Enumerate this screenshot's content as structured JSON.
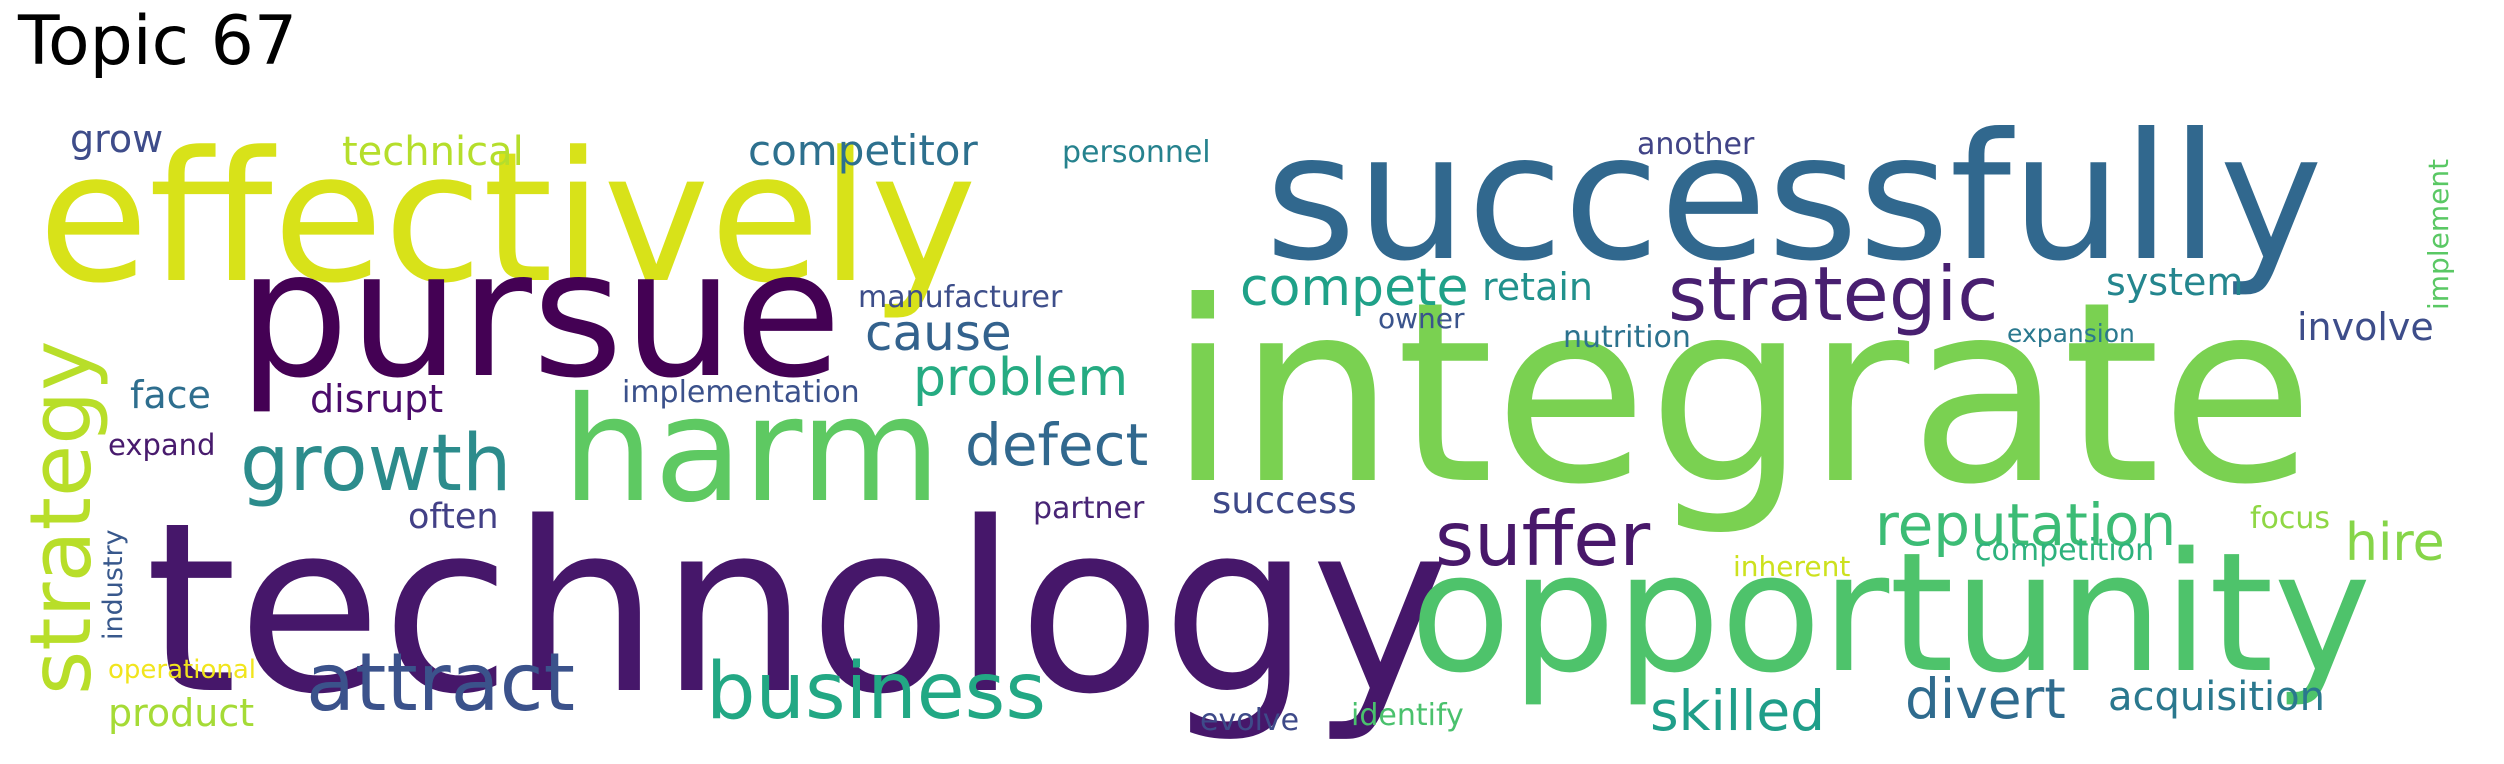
{
  "title": "Topic 67",
  "words": [
    {
      "text": "integrate",
      "color": "#7ad151"
    },
    {
      "text": "technology",
      "color": "#46176a"
    },
    {
      "text": "successfully",
      "color": "#31688e"
    },
    {
      "text": "effectively",
      "color": "#d8e219"
    },
    {
      "text": "pursue",
      "color": "#440154"
    },
    {
      "text": "opportunity",
      "color": "#4ec36b"
    },
    {
      "text": "harm",
      "color": "#5ec962"
    },
    {
      "text": "strategy",
      "color": "#b8de29"
    },
    {
      "text": "strategic",
      "color": "#481f70"
    },
    {
      "text": "attract",
      "color": "#3b528b"
    },
    {
      "text": "business",
      "color": "#22a884"
    },
    {
      "text": "growth",
      "color": "#2c8c8c"
    },
    {
      "text": "suffer",
      "color": "#48186a"
    },
    {
      "text": "reputation",
      "color": "#3cbc75"
    },
    {
      "text": "defect",
      "color": "#31688e"
    },
    {
      "text": "problem",
      "color": "#25ab82"
    },
    {
      "text": "cause",
      "color": "#33628d"
    },
    {
      "text": "compete",
      "color": "#1fa188"
    },
    {
      "text": "skilled",
      "color": "#1f9e89"
    },
    {
      "text": "divert",
      "color": "#2f6b8e"
    },
    {
      "text": "hire",
      "color": "#86d549"
    },
    {
      "text": "acquisition",
      "color": "#2a788e"
    },
    {
      "text": "competitor",
      "color": "#2d708e"
    },
    {
      "text": "technical",
      "color": "#b5de2b"
    },
    {
      "text": "retain",
      "color": "#21918c"
    },
    {
      "text": "system",
      "color": "#24868e"
    },
    {
      "text": "involve",
      "color": "#3d4d8a"
    },
    {
      "text": "disrupt",
      "color": "#4b0c6b"
    },
    {
      "text": "face",
      "color": "#2e6e8e"
    },
    {
      "text": "often",
      "color": "#424086"
    },
    {
      "text": "success",
      "color": "#3e4989"
    },
    {
      "text": "product",
      "color": "#a5db36"
    },
    {
      "text": "grow",
      "color": "#3e4c8a"
    },
    {
      "text": "manufacturer",
      "color": "#3d4e8a"
    },
    {
      "text": "implementation",
      "color": "#3b518b"
    },
    {
      "text": "personnel",
      "color": "#26828e"
    },
    {
      "text": "another",
      "color": "#414487"
    },
    {
      "text": "expand",
      "color": "#481b6d"
    },
    {
      "text": "industry",
      "color": "#38588c"
    },
    {
      "text": "partner",
      "color": "#482576"
    },
    {
      "text": "owner",
      "color": "#3a548c"
    },
    {
      "text": "nutrition",
      "color": "#2c728e"
    },
    {
      "text": "expansion",
      "color": "#2a788e"
    },
    {
      "text": "implement",
      "color": "#5ac864"
    },
    {
      "text": "focus",
      "color": "#8fd744"
    },
    {
      "text": "competition",
      "color": "#2db27d"
    },
    {
      "text": "inherent",
      "color": "#cde11d"
    },
    {
      "text": "operational",
      "color": "#f1e51d"
    },
    {
      "text": "evolve",
      "color": "#3e4a89"
    },
    {
      "text": "identify",
      "color": "#4ac16d"
    }
  ]
}
